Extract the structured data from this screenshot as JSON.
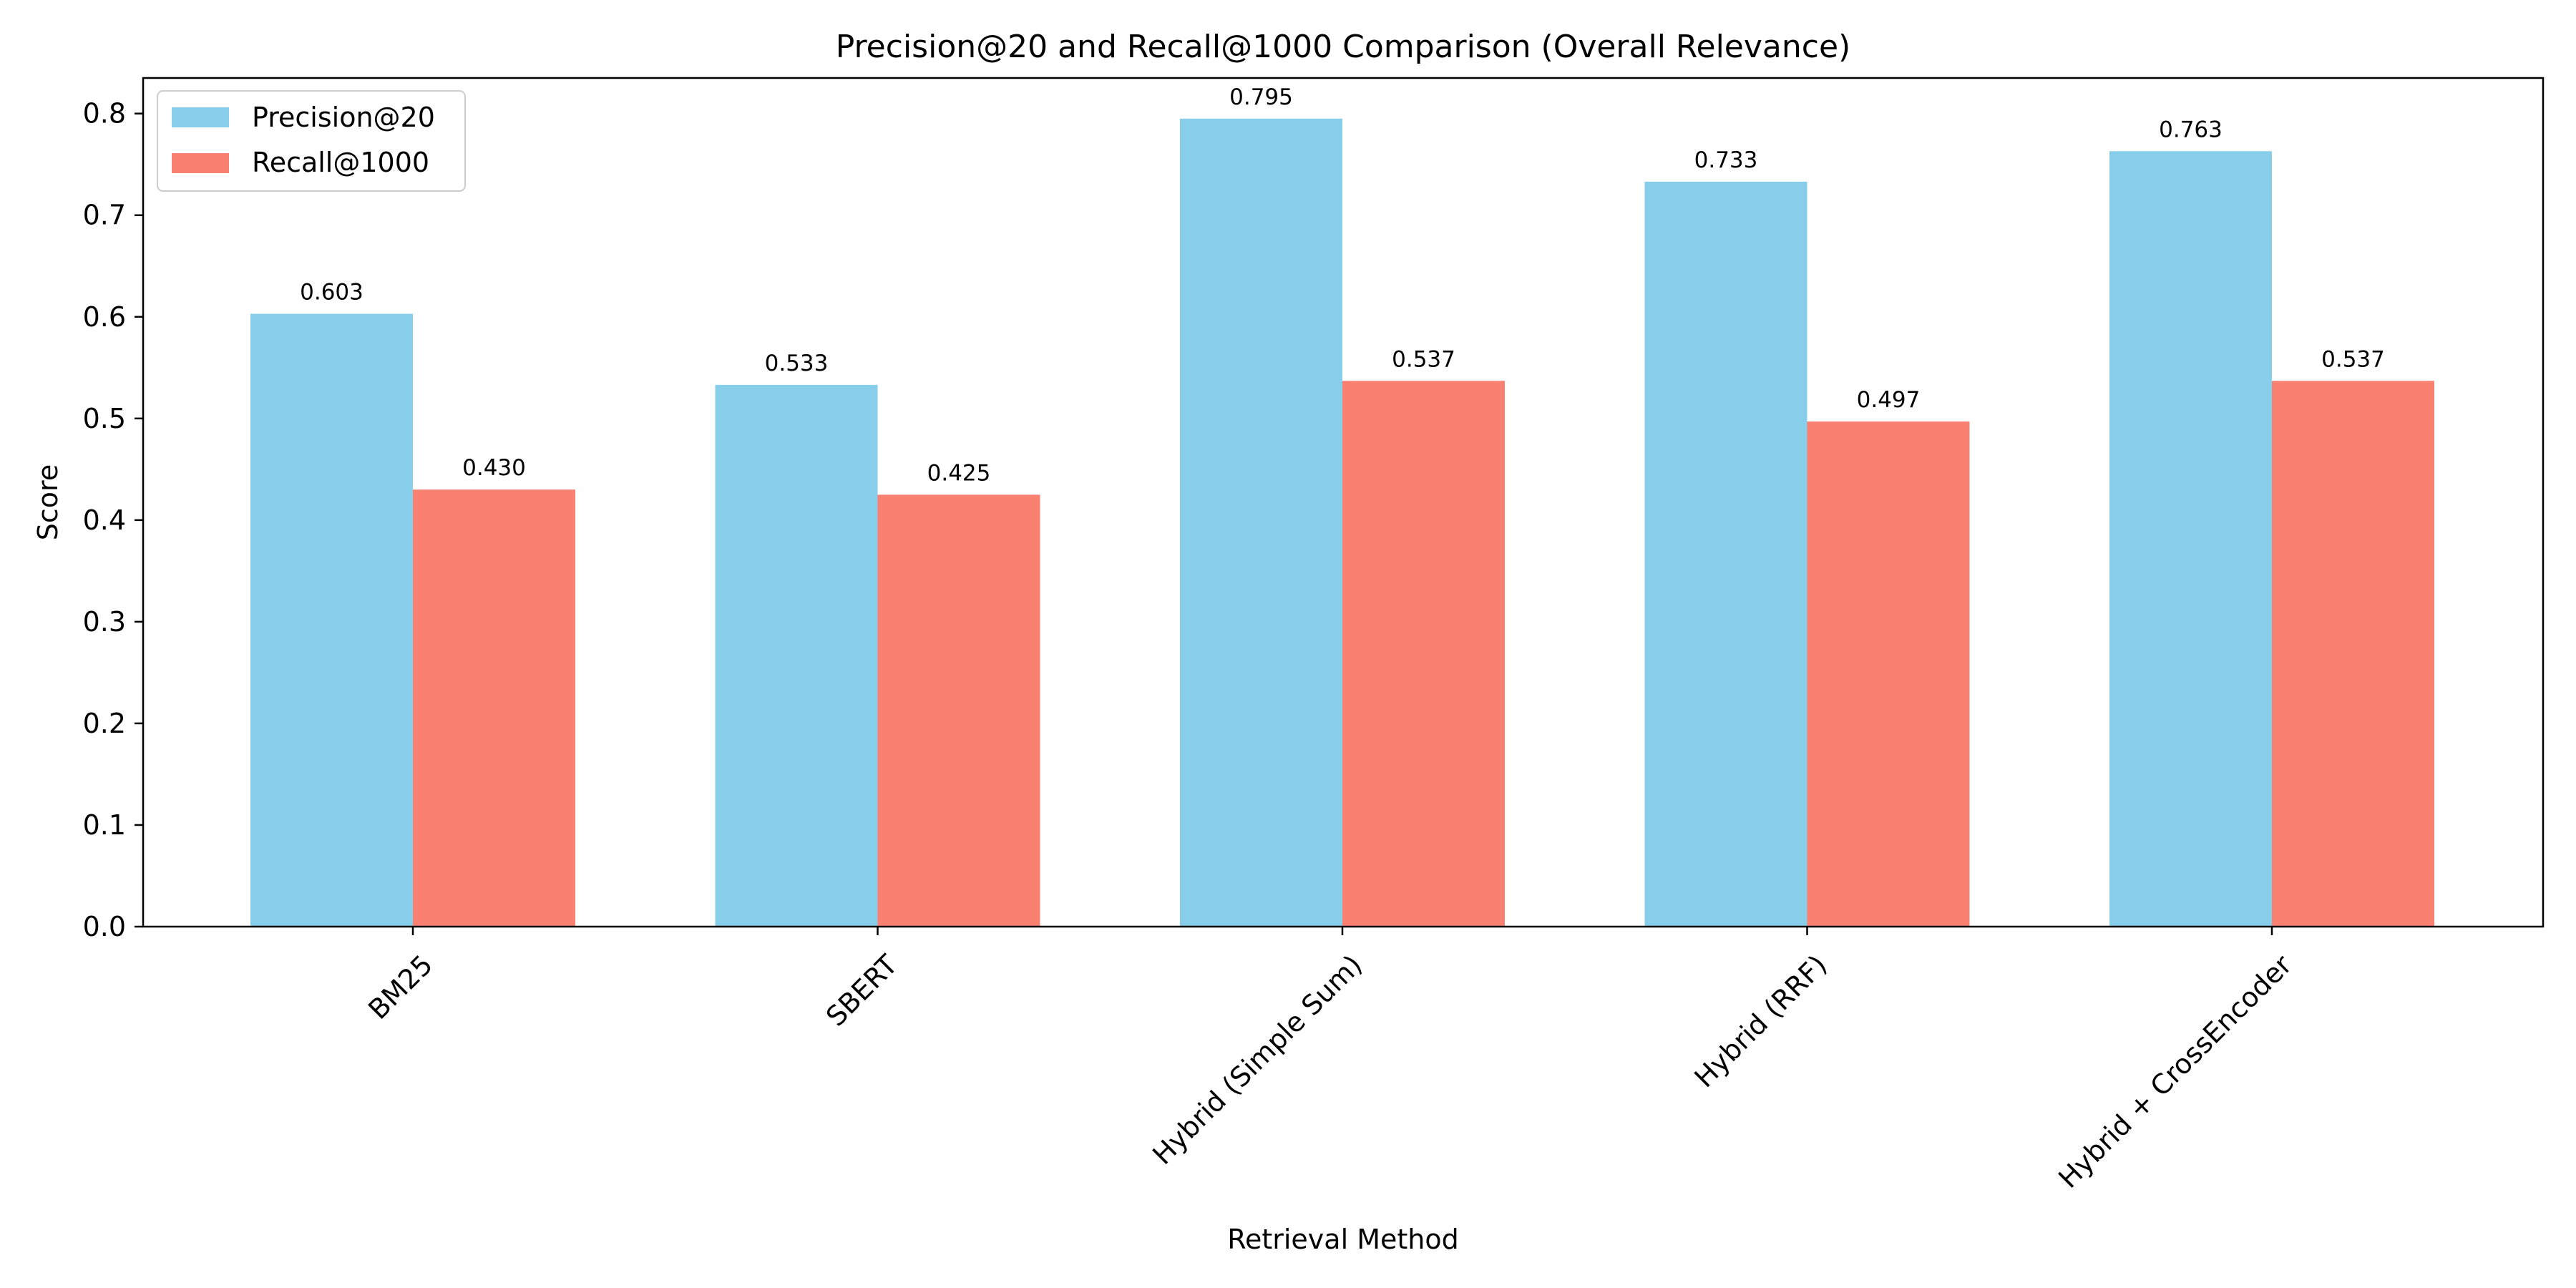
{
  "chart_data": {
    "type": "bar",
    "title": "Precision@20 and Recall@1000 Comparison (Overall Relevance)",
    "xlabel": "Retrieval Method",
    "ylabel": "Score",
    "categories": [
      "BM25",
      "SBERT",
      "Hybrid (Simple Sum)",
      "Hybrid (RRF)",
      "Hybrid + CrossEncoder"
    ],
    "series": [
      {
        "name": "Precision@20",
        "values": [
          0.603,
          0.533,
          0.795,
          0.733,
          0.763
        ],
        "labels": [
          "0.603",
          "0.533",
          "0.795",
          "0.733",
          "0.763"
        ],
        "color": "#87CEEB"
      },
      {
        "name": "Recall@1000",
        "values": [
          0.43,
          0.425,
          0.537,
          0.497,
          0.537
        ],
        "labels": [
          "0.430",
          "0.425",
          "0.537",
          "0.497",
          "0.537"
        ],
        "color": "#FA8072"
      }
    ],
    "ylim": [
      0,
      0.835
    ],
    "yticks": [
      0.0,
      0.1,
      0.2,
      0.3,
      0.4,
      0.5,
      0.6,
      0.7,
      0.8
    ],
    "ytick_labels": [
      "0.0",
      "0.1",
      "0.2",
      "0.3",
      "0.4",
      "0.5",
      "0.6",
      "0.7",
      "0.8"
    ],
    "grid": false,
    "legend_position": "top-left"
  }
}
